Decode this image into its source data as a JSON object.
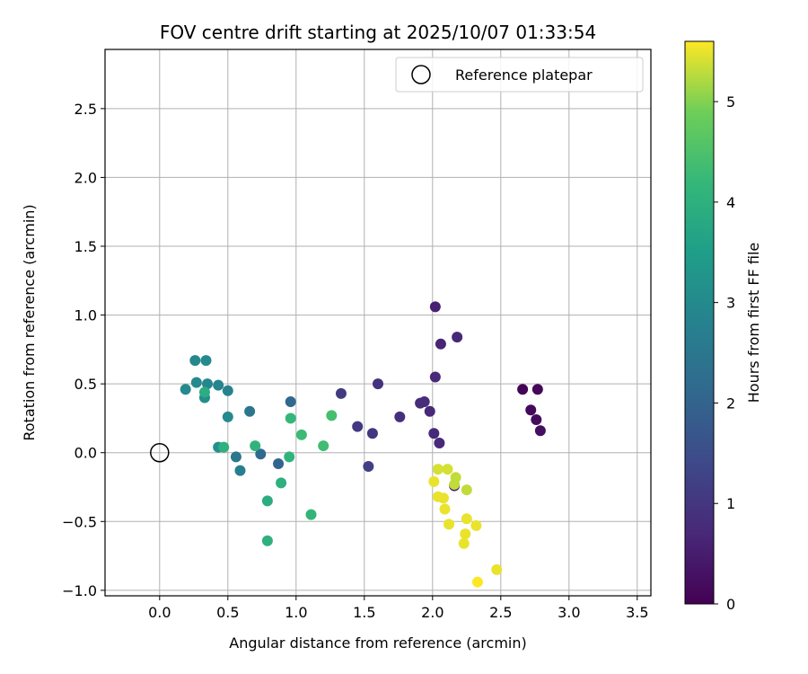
{
  "chart_data": {
    "type": "scatter",
    "title": "FOV centre drift starting at 2025/10/07 01:33:54",
    "xlabel": "Angular distance from reference (arcmin)",
    "ylabel": "Rotation from reference (arcmin)",
    "xlim": [
      -0.4,
      3.6
    ],
    "ylim": [
      -1.04,
      2.93
    ],
    "xticks": [
      0.0,
      0.5,
      1.0,
      1.5,
      2.0,
      2.5,
      3.0,
      3.5
    ],
    "xtick_labels": [
      "0.0",
      "0.5",
      "1.0",
      "1.5",
      "2.0",
      "2.5",
      "3.0",
      "3.5"
    ],
    "yticks": [
      -1.0,
      -0.5,
      0.0,
      0.5,
      1.0,
      1.5,
      2.0,
      2.5
    ],
    "ytick_labels": [
      "−1.0",
      "−0.5",
      "0.0",
      "0.5",
      "1.0",
      "1.5",
      "2.0",
      "2.5"
    ],
    "grid": true,
    "legend": {
      "position": "upper-right",
      "entries": [
        "Reference platepar"
      ]
    },
    "reference_point": {
      "x": 0.0,
      "y": 0.0,
      "label": "Reference platepar"
    },
    "colorbar": {
      "label": "Hours from first FF file",
      "range": [
        0,
        5.6
      ],
      "ticks": [
        0,
        1,
        2,
        3,
        4,
        5
      ],
      "tick_labels": [
        "0",
        "1",
        "2",
        "3",
        "4",
        "5"
      ],
      "colormap": "viridis"
    },
    "points": [
      {
        "x": 2.66,
        "y": 0.46,
        "hours": 0.05
      },
      {
        "x": 2.77,
        "y": 0.46,
        "hours": 0.1
      },
      {
        "x": 2.72,
        "y": 0.31,
        "hours": 0.15
      },
      {
        "x": 2.76,
        "y": 0.24,
        "hours": 0.2
      },
      {
        "x": 2.79,
        "y": 0.16,
        "hours": 0.25
      },
      {
        "x": 2.16,
        "y": -0.24,
        "hours": 0.4
      },
      {
        "x": 2.02,
        "y": 1.06,
        "hours": 0.6
      },
      {
        "x": 2.06,
        "y": 0.79,
        "hours": 0.65
      },
      {
        "x": 2.18,
        "y": 0.84,
        "hours": 0.7
      },
      {
        "x": 2.02,
        "y": 0.55,
        "hours": 0.75
      },
      {
        "x": 1.91,
        "y": 0.36,
        "hours": 0.8
      },
      {
        "x": 1.94,
        "y": 0.37,
        "hours": 0.8
      },
      {
        "x": 1.98,
        "y": 0.3,
        "hours": 0.7
      },
      {
        "x": 2.01,
        "y": 0.14,
        "hours": 0.75
      },
      {
        "x": 2.05,
        "y": 0.07,
        "hours": 0.75
      },
      {
        "x": 1.76,
        "y": 0.26,
        "hours": 0.85
      },
      {
        "x": 1.6,
        "y": 0.5,
        "hours": 0.9
      },
      {
        "x": 1.56,
        "y": 0.14,
        "hours": 1.0
      },
      {
        "x": 1.45,
        "y": 0.19,
        "hours": 1.05
      },
      {
        "x": 1.33,
        "y": 0.43,
        "hours": 1.1
      },
      {
        "x": 1.53,
        "y": -0.1,
        "hours": 1.2
      },
      {
        "x": 0.96,
        "y": 0.37,
        "hours": 2.1
      },
      {
        "x": 0.87,
        "y": -0.08,
        "hours": 2.0
      },
      {
        "x": 0.74,
        "y": -0.01,
        "hours": 2.15
      },
      {
        "x": 0.66,
        "y": 0.3,
        "hours": 2.5
      },
      {
        "x": 0.56,
        "y": -0.03,
        "hours": 2.5
      },
      {
        "x": 0.59,
        "y": -0.13,
        "hours": 2.7
      },
      {
        "x": 0.5,
        "y": 0.45,
        "hours": 2.8
      },
      {
        "x": 0.5,
        "y": 0.26,
        "hours": 3.0
      },
      {
        "x": 0.43,
        "y": 0.49,
        "hours": 2.85
      },
      {
        "x": 0.35,
        "y": 0.5,
        "hours": 2.9
      },
      {
        "x": 0.34,
        "y": 0.67,
        "hours": 3.0
      },
      {
        "x": 0.26,
        "y": 0.67,
        "hours": 2.95
      },
      {
        "x": 0.27,
        "y": 0.51,
        "hours": 3.0
      },
      {
        "x": 0.19,
        "y": 0.46,
        "hours": 3.0
      },
      {
        "x": 0.33,
        "y": 0.4,
        "hours": 3.1
      },
      {
        "x": 0.33,
        "y": 0.44,
        "hours": 3.9
      },
      {
        "x": 0.43,
        "y": 0.04,
        "hours": 3.15
      },
      {
        "x": 0.47,
        "y": 0.04,
        "hours": 4.0
      },
      {
        "x": 0.7,
        "y": 0.05,
        "hours": 4.1
      },
      {
        "x": 0.79,
        "y": -0.35,
        "hours": 3.9
      },
      {
        "x": 0.79,
        "y": -0.64,
        "hours": 4.0
      },
      {
        "x": 0.89,
        "y": -0.22,
        "hours": 4.0
      },
      {
        "x": 0.95,
        "y": -0.03,
        "hours": 4.1
      },
      {
        "x": 0.96,
        "y": 0.25,
        "hours": 4.2
      },
      {
        "x": 1.04,
        "y": 0.13,
        "hours": 4.3
      },
      {
        "x": 1.11,
        "y": -0.45,
        "hours": 4.15
      },
      {
        "x": 1.2,
        "y": 0.05,
        "hours": 4.35
      },
      {
        "x": 1.26,
        "y": 0.27,
        "hours": 4.4
      },
      {
        "x": 2.01,
        "y": -0.21,
        "hours": 5.5
      },
      {
        "x": 2.04,
        "y": -0.12,
        "hours": 5.4
      },
      {
        "x": 2.11,
        "y": -0.12,
        "hours": 5.4
      },
      {
        "x": 2.04,
        "y": -0.32,
        "hours": 5.5
      },
      {
        "x": 2.08,
        "y": -0.33,
        "hours": 5.5
      },
      {
        "x": 2.09,
        "y": -0.41,
        "hours": 5.5
      },
      {
        "x": 2.12,
        "y": -0.52,
        "hours": 5.5
      },
      {
        "x": 2.16,
        "y": -0.23,
        "hours": 5.3
      },
      {
        "x": 2.17,
        "y": -0.18,
        "hours": 5.3
      },
      {
        "x": 2.25,
        "y": -0.27,
        "hours": 5.3
      },
      {
        "x": 2.25,
        "y": -0.48,
        "hours": 5.5
      },
      {
        "x": 2.24,
        "y": -0.59,
        "hours": 5.5
      },
      {
        "x": 2.23,
        "y": -0.66,
        "hours": 5.5
      },
      {
        "x": 2.32,
        "y": -0.53,
        "hours": 5.5
      },
      {
        "x": 2.47,
        "y": -0.85,
        "hours": 5.5
      },
      {
        "x": 2.33,
        "y": -0.94,
        "hours": 5.6
      }
    ]
  }
}
